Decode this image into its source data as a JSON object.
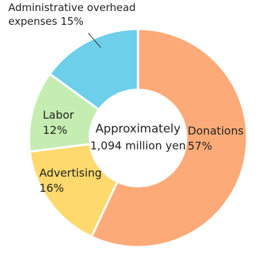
{
  "chart_data": {
    "type": "pie",
    "categories": [
      "Donations",
      "Advertising",
      "Labor",
      "Administrative overhead expenses"
    ],
    "values": [
      57,
      16,
      12,
      15
    ],
    "value_labels": [
      "57%",
      "16%",
      "12%",
      "15%"
    ],
    "colors": [
      "#fcab78",
      "#fdd96e",
      "#c5edb1",
      "#6dcfea"
    ],
    "annotations": [
      "Approximately",
      "1,094 million yen"
    ]
  }
}
